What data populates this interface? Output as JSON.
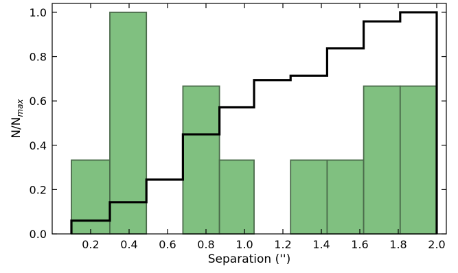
{
  "chart_data": {
    "type": "bar",
    "xlabel": "Separation ('')",
    "ylabel": "N/N",
    "ylabel_subscript": "max",
    "xlim": [
      0.0,
      2.05
    ],
    "ylim": [
      0.0,
      1.04
    ],
    "x_ticks": [
      "0.2",
      "0.4",
      "0.6",
      "0.8",
      "1.0",
      "1.2",
      "1.4",
      "1.6",
      "1.8",
      "2.0"
    ],
    "y_ticks": [
      "0.0",
      "0.2",
      "0.4",
      "0.6",
      "0.8",
      "1.0"
    ],
    "grid": false,
    "histogram": {
      "bin_edges": [
        0.1,
        0.3,
        0.49,
        0.68,
        0.87,
        1.05,
        1.24,
        1.43,
        1.62,
        1.81,
        2.0
      ],
      "values": [
        0.333,
        1.0,
        0.0,
        0.667,
        0.333,
        0.0,
        0.333,
        0.333,
        0.667,
        0.667
      ],
      "fill_color": "#80c080",
      "edge_color": "#4a6a4a"
    },
    "cumulative": {
      "type": "step",
      "bin_edges": [
        0.1,
        0.3,
        0.49,
        0.68,
        0.87,
        1.05,
        1.24,
        1.43,
        1.62,
        1.81,
        2.0
      ],
      "values": [
        0.06,
        0.143,
        0.245,
        0.449,
        0.571,
        0.694,
        0.714,
        0.837,
        0.959,
        1.0
      ],
      "color": "#000000"
    }
  }
}
